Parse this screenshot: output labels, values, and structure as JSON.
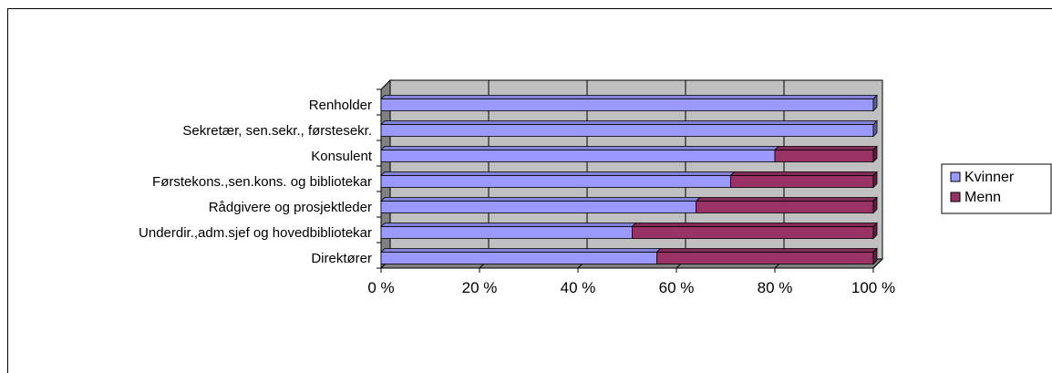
{
  "page": {
    "clipped_heading": ""
  },
  "chart_data": {
    "type": "bar",
    "orientation": "horizontal",
    "stacked": "percent",
    "categories": [
      "Direktører",
      "Underdir.,adm.sjef og hovedbibliotekar",
      "Rådgivere og prosjektleder",
      "Førstekons.,sen.kons. og bibliotekar",
      "Konsulent",
      "Sekretær, sen.sekr., førstesekr.",
      "Renholder"
    ],
    "series": [
      {
        "name": "Kvinner",
        "color": "#9999ff",
        "values": [
          56,
          51,
          64,
          71,
          80,
          100,
          100
        ]
      },
      {
        "name": "Menn",
        "color": "#993366",
        "values": [
          44,
          49,
          36,
          29,
          20,
          0,
          0
        ]
      }
    ],
    "xlim": [
      0,
      100
    ],
    "xticks": [
      "0 %",
      "20 %",
      "40 %",
      "60 %",
      "80 %",
      "100 %"
    ],
    "xlabel": "",
    "ylabel": "",
    "title": "",
    "grid": true,
    "legend": "right",
    "colors": {
      "wall": "#c0c0c0",
      "floor": "#808080",
      "gridline": "#000000"
    }
  }
}
